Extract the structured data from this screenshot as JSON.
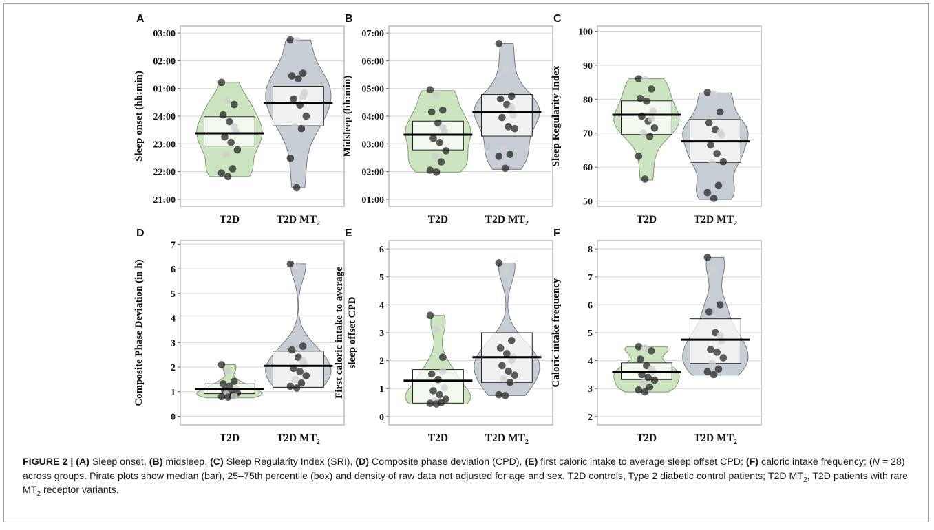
{
  "figure": {
    "label": "FIGURE 2 | ",
    "caption_html": "<b>(A)</b> Sleep onset, <b>(B)</b> midsleep, <b>(C)</b> Sleep Regularity Index (SRI), <b>(D)</b> Composite phase deviation (CPD), <b>(E)</b> first caloric intake to average sleep offset CPD; <b>(F)</b> caloric intake frequency; (<i>N</i> = 28) across groups. Pirate plots show median (bar), 25–75th percentile (box) and density of raw data not adjusted for age and sex. T2D controls, Type 2 diabetic control patients; T2D MT<sub>2</sub>, T2D patients with rare MT<sub>2</sub> receptor variants."
  },
  "colors": {
    "t2d_fill": "#c9e3bd",
    "t2d_stroke": "#7a9a6e",
    "mt2_fill": "#c3cad3",
    "mt2_stroke": "#6f7a86",
    "grid": "#d4d4d4",
    "frame": "#9a9a9a",
    "point": "#1e1e1e"
  },
  "chart_data": [
    {
      "panel": "A",
      "type": "pirate",
      "ylabel": "Sleep onset (hh:min)",
      "categories": [
        "T2D",
        "T2D MT2"
      ],
      "ylim": [
        20.75,
        27.25
      ],
      "yticks": [
        21,
        22,
        23,
        24,
        25,
        26,
        27
      ],
      "ytick_labels": [
        "21:00",
        "22:00",
        "23:00",
        "24:00",
        "01:00",
        "02:00",
        "03:00"
      ],
      "groups": [
        {
          "name": "T2D",
          "median": 23.38,
          "q1": 22.92,
          "q3": 23.98,
          "min": 21.82,
          "max": 25.22,
          "points": [
            25.22,
            24.55,
            24.42,
            24.05,
            23.8,
            23.45,
            23.25,
            23.05,
            22.78,
            22.62,
            22.1,
            21.95,
            21.82,
            23.62
          ]
        },
        {
          "name": "T2D MT2",
          "median": 24.48,
          "q1": 23.65,
          "q3": 25.08,
          "min": 21.42,
          "max": 26.75,
          "points": [
            26.75,
            26.72,
            25.55,
            25.45,
            25.35,
            24.85,
            24.62,
            24.4,
            24.0,
            23.62,
            23.55,
            22.48,
            21.42,
            24.7
          ]
        }
      ]
    },
    {
      "panel": "B",
      "type": "pirate",
      "ylabel": "Midsleep (hh:min)",
      "categories": [
        "T2D",
        "T2D MT2"
      ],
      "ylim": [
        0.75,
        7.25
      ],
      "yticks": [
        1,
        2,
        3,
        4,
        5,
        6,
        7
      ],
      "ytick_labels": [
        "01:00",
        "02:00",
        "03:00",
        "04:00",
        "05:00",
        "06:00",
        "07:00"
      ],
      "groups": [
        {
          "name": "T2D",
          "median": 3.33,
          "q1": 2.78,
          "q3": 3.82,
          "min": 1.98,
          "max": 4.92,
          "points": [
            4.95,
            4.75,
            4.22,
            4.15,
            3.75,
            3.45,
            3.2,
            3.05,
            2.75,
            2.55,
            2.35,
            2.05,
            1.98,
            3.6
          ]
        },
        {
          "name": "T2D MT2",
          "median": 4.15,
          "q1": 3.28,
          "q3": 4.78,
          "min": 2.08,
          "max": 6.62,
          "points": [
            6.62,
            5.68,
            4.72,
            4.62,
            4.42,
            4.05,
            3.95,
            3.62,
            3.55,
            2.82,
            2.62,
            2.55,
            2.12,
            4.3
          ]
        }
      ]
    },
    {
      "panel": "C",
      "type": "pirate",
      "ylabel": "Sleep Regularity  Index",
      "categories": [
        "T2D",
        "T2D MT2"
      ],
      "ylim": [
        48.5,
        101.5
      ],
      "yticks": [
        50,
        60,
        70,
        80,
        90,
        100
      ],
      "ytick_labels": [
        "50",
        "60",
        "70",
        "80",
        "90",
        "100"
      ],
      "groups": [
        {
          "name": "T2D",
          "median": 75.4,
          "q1": 69.6,
          "q3": 79.5,
          "min": 56.2,
          "max": 86.0,
          "points": [
            86.0,
            85.8,
            83.0,
            80.2,
            79.4,
            76.5,
            75.0,
            73.5,
            71.5,
            70.0,
            69.0,
            63.2,
            56.5,
            74.2
          ]
        },
        {
          "name": "T2D MT2",
          "median": 67.6,
          "q1": 61.4,
          "q3": 74.0,
          "min": 50.5,
          "max": 81.8,
          "points": [
            82.0,
            81.5,
            76.2,
            73.0,
            71.0,
            69.5,
            66.5,
            64.0,
            61.6,
            61.2,
            54.6,
            52.5,
            50.8,
            70.2
          ]
        }
      ]
    },
    {
      "panel": "D",
      "type": "pirate",
      "ylabel": "Composite  Phase Deviation  (in h)",
      "categories": [
        "T2D",
        "T2D MT2"
      ],
      "ylim": [
        -0.35,
        7.15
      ],
      "yticks": [
        0,
        1,
        2,
        3,
        4,
        5,
        6,
        7
      ],
      "ytick_labels": [
        "0",
        "1",
        "2",
        "3",
        "4",
        "5",
        "6",
        "7"
      ],
      "groups": [
        {
          "name": "T2D",
          "median": 1.1,
          "q1": 0.92,
          "q3": 1.32,
          "min": 0.75,
          "max": 2.1,
          "points": [
            2.1,
            1.85,
            1.42,
            1.32,
            1.22,
            1.12,
            1.05,
            1.0,
            0.95,
            0.9,
            0.85,
            0.8,
            0.78,
            0.82
          ]
        },
        {
          "name": "T2D MT2",
          "median": 2.05,
          "q1": 1.18,
          "q3": 2.65,
          "min": 1.15,
          "max": 6.2,
          "points": [
            6.2,
            6.12,
            2.85,
            2.7,
            2.4,
            2.1,
            1.95,
            1.82,
            1.65,
            1.5,
            1.35,
            1.22,
            1.15,
            2.25
          ]
        }
      ]
    },
    {
      "panel": "E",
      "type": "pirate",
      "ylabel": "First caloric intake to average sleep offset CPD",
      "categories": [
        "T2D",
        "T2D MT2"
      ],
      "ylim": [
        -0.3,
        6.3
      ],
      "yticks": [
        0,
        1,
        2,
        3,
        4,
        5,
        6
      ],
      "ytick_labels": [
        "0",
        "1",
        "2",
        "3",
        "4",
        "5",
        "6"
      ],
      "groups": [
        {
          "name": "T2D",
          "median": 1.28,
          "q1": 0.48,
          "q3": 1.68,
          "min": 0.45,
          "max": 3.62,
          "points": [
            3.62,
            3.12,
            2.12,
            1.52,
            1.32,
            1.02,
            0.92,
            0.78,
            0.62,
            0.55,
            0.5,
            0.47,
            0.45,
            1.62
          ]
        },
        {
          "name": "T2D MT2",
          "median": 2.12,
          "q1": 1.22,
          "q3": 3.0,
          "min": 0.75,
          "max": 5.5,
          "points": [
            5.5,
            5.25,
            2.72,
            2.45,
            2.25,
            2.12,
            1.82,
            1.62,
            1.48,
            1.35,
            1.22,
            0.78,
            0.75,
            2.02
          ]
        }
      ]
    },
    {
      "panel": "F",
      "type": "pirate",
      "ylabel": "Caloric intake frequency",
      "categories": [
        "T2D",
        "T2D MT2"
      ],
      "ylim": [
        1.7,
        8.3
      ],
      "yticks": [
        2,
        3,
        4,
        5,
        6,
        7,
        8
      ],
      "ytick_labels": [
        "2",
        "3",
        "4",
        "5",
        "6",
        "7",
        "8"
      ],
      "groups": [
        {
          "name": "T2D",
          "median": 3.6,
          "q1": 3.32,
          "q3": 3.92,
          "min": 2.88,
          "max": 4.5,
          "points": [
            4.5,
            4.45,
            4.35,
            4.05,
            3.82,
            3.62,
            3.5,
            3.4,
            3.3,
            3.2,
            3.05,
            2.95,
            2.88,
            3.7
          ]
        },
        {
          "name": "T2D MT2",
          "median": 4.75,
          "q1": 3.9,
          "q3": 5.5,
          "min": 3.48,
          "max": 7.7,
          "points": [
            7.7,
            7.25,
            6.0,
            5.75,
            5.0,
            4.7,
            4.4,
            4.3,
            4.1,
            3.9,
            3.7,
            3.6,
            3.5,
            4.9
          ]
        }
      ]
    }
  ]
}
